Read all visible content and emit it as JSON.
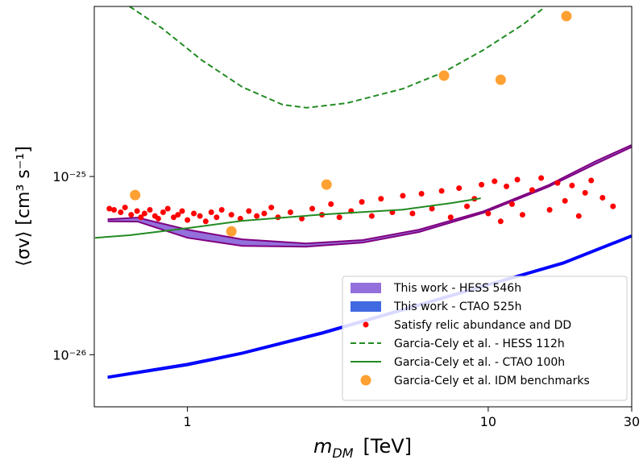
{
  "chart_data": {
    "type": "line",
    "xlabel_symbol": "m",
    "xlabel_subscript": "DM",
    "xlabel_unit": "[TeV]",
    "ylabel": "⟨σv⟩ [cm³  s⁻¹]",
    "xscale": "log",
    "yscale": "log",
    "xlim": [
      0.49,
      30
    ],
    "ylim": [
      5.1e-27,
      9e-25
    ],
    "xticks": [
      1,
      10,
      30
    ],
    "yticks": [
      {
        "value": 1e-26,
        "label": "10⁻²⁶"
      },
      {
        "value": 1e-25,
        "label": "10⁻²⁵"
      }
    ],
    "legend": "lower right",
    "series": [
      {
        "name": "This work - HESS 546h",
        "style": "band",
        "color": "#9370db",
        "edge": "#800080",
        "x": [
          0.543,
          0.683,
          1,
          1.52,
          2.49,
          3.83,
          5.89,
          9.64,
          15.8,
          22.8,
          29.9
        ],
        "values_low": [
          5.6e-26,
          5.58e-26,
          4.53e-26,
          4.08e-26,
          4.04e-26,
          4.26e-26,
          4.88e-26,
          6.25e-26,
          8.73e-26,
          1.18e-25,
          1.46e-25
        ],
        "values_high": [
          5.75e-26,
          5.88e-26,
          5.03e-26,
          4.44e-26,
          4.21e-26,
          4.4e-26,
          5.03e-26,
          6.38e-26,
          8.92e-26,
          1.22e-25,
          1.5e-25
        ]
      },
      {
        "name": "This work - CTAO 525h",
        "style": "band",
        "color": "#4169e1",
        "edge": "#0000ff",
        "x": [
          0.543,
          1,
          1.52,
          2.81,
          5.21,
          9.64,
          17.8,
          29.9
        ],
        "values_low": [
          7.4e-27,
          8.7e-27,
          1.01e-26,
          1.31e-26,
          1.77e-26,
          2.4e-26,
          3.24e-26,
          4.58e-26
        ],
        "values_high": [
          7.55e-27,
          8.91e-27,
          1.03e-26,
          1.34e-26,
          1.81e-26,
          2.45e-26,
          3.31e-26,
          4.68e-26
        ]
      },
      {
        "name": "Satisfy relic abundance and DD",
        "style": "scatter",
        "color": "#ff0000",
        "x": [
          0.55,
          0.57,
          0.6,
          0.62,
          0.65,
          0.68,
          0.7,
          0.72,
          0.75,
          0.78,
          0.8,
          0.83,
          0.86,
          0.9,
          0.93,
          0.96,
          1.0,
          1.05,
          1.1,
          1.15,
          1.2,
          1.25,
          1.3,
          1.4,
          1.5,
          1.6,
          1.7,
          1.8,
          1.9,
          2.0,
          2.2,
          2.4,
          2.6,
          2.8,
          3.0,
          3.2,
          3.5,
          3.8,
          4.1,
          4.4,
          4.8,
          5.2,
          5.6,
          6.0,
          6.5,
          7.0,
          7.5,
          8.0,
          8.5,
          9.0,
          9.5,
          10,
          10.5,
          11,
          11.5,
          12,
          12.5,
          13,
          14,
          15,
          16,
          17,
          18,
          19,
          20,
          21,
          22,
          24,
          26
        ],
        "values": [
          6.6e-26,
          6.5e-26,
          6.3e-26,
          6.7e-26,
          6.1e-26,
          6.4e-26,
          5.9e-26,
          6.2e-26,
          6.5e-26,
          6e-26,
          5.8e-26,
          6.3e-26,
          6.6e-26,
          5.9e-26,
          6.1e-26,
          6.4e-26,
          5.7e-26,
          6.2e-26,
          6e-26,
          5.6e-26,
          6.3e-26,
          5.9e-26,
          6.5e-26,
          6.1e-26,
          5.8e-26,
          6.4e-26,
          6e-26,
          6.2e-26,
          6.7e-26,
          5.9e-26,
          6.3e-26,
          5.8e-26,
          6.6e-26,
          6.1e-26,
          7e-26,
          5.9e-26,
          6.4e-26,
          7.2e-26,
          6e-26,
          7.5e-26,
          6.3e-26,
          7.8e-26,
          6.2e-26,
          8e-26,
          6.6e-26,
          8.3e-26,
          5.9e-26,
          8.6e-26,
          6.8e-26,
          7.5e-26,
          9e-26,
          6.2e-26,
          9.4e-26,
          5.6e-26,
          8.8e-26,
          7e-26,
          9.6e-26,
          6.1e-26,
          8.4e-26,
          9.8e-26,
          6.5e-26,
          9.2e-26,
          7.3e-26,
          8.9e-26,
          6e-26,
          8.1e-26,
          9.5e-26,
          7.6e-26,
          6.8e-26
        ]
      },
      {
        "name": "Garcia-Cely et al. - HESS 112h",
        "style": "dashed",
        "color": "#228b22",
        "x": [
          0.642,
          0.821,
          1.117,
          1.52,
          2.07,
          2.49,
          3.39,
          5.21,
          7.09,
          9.64,
          13.1,
          15.3
        ],
        "values": [
          9e-25,
          6.81e-25,
          4.49e-25,
          3.18e-25,
          2.53e-25,
          2.43e-25,
          2.58e-25,
          3.11e-25,
          3.84e-25,
          5.13e-25,
          7.16e-25,
          8.83e-25
        ]
      },
      {
        "name": "Garcia-Cely et al. - CTAO 100h",
        "style": "solid",
        "color": "#228b22",
        "x": [
          0.493,
          0.642,
          1,
          1.52,
          2.81,
          5.21,
          7.53,
          9.45
        ],
        "values": [
          4.53e-26,
          4.68e-26,
          5.13e-26,
          5.64e-26,
          6.12e-26,
          6.52e-26,
          7.09e-26,
          7.55e-26
        ]
      },
      {
        "name": "Garcia-Cely et al. IDM benchmarks",
        "style": "bigscatter",
        "color": "#ffa033",
        "x": [
          0.67,
          1.4,
          2.9,
          7.13,
          11.0,
          18.2
        ],
        "values": [
          7.87e-26,
          4.92e-26,
          9.01e-26,
          3.68e-25,
          3.49e-25,
          7.94e-25
        ]
      }
    ]
  }
}
